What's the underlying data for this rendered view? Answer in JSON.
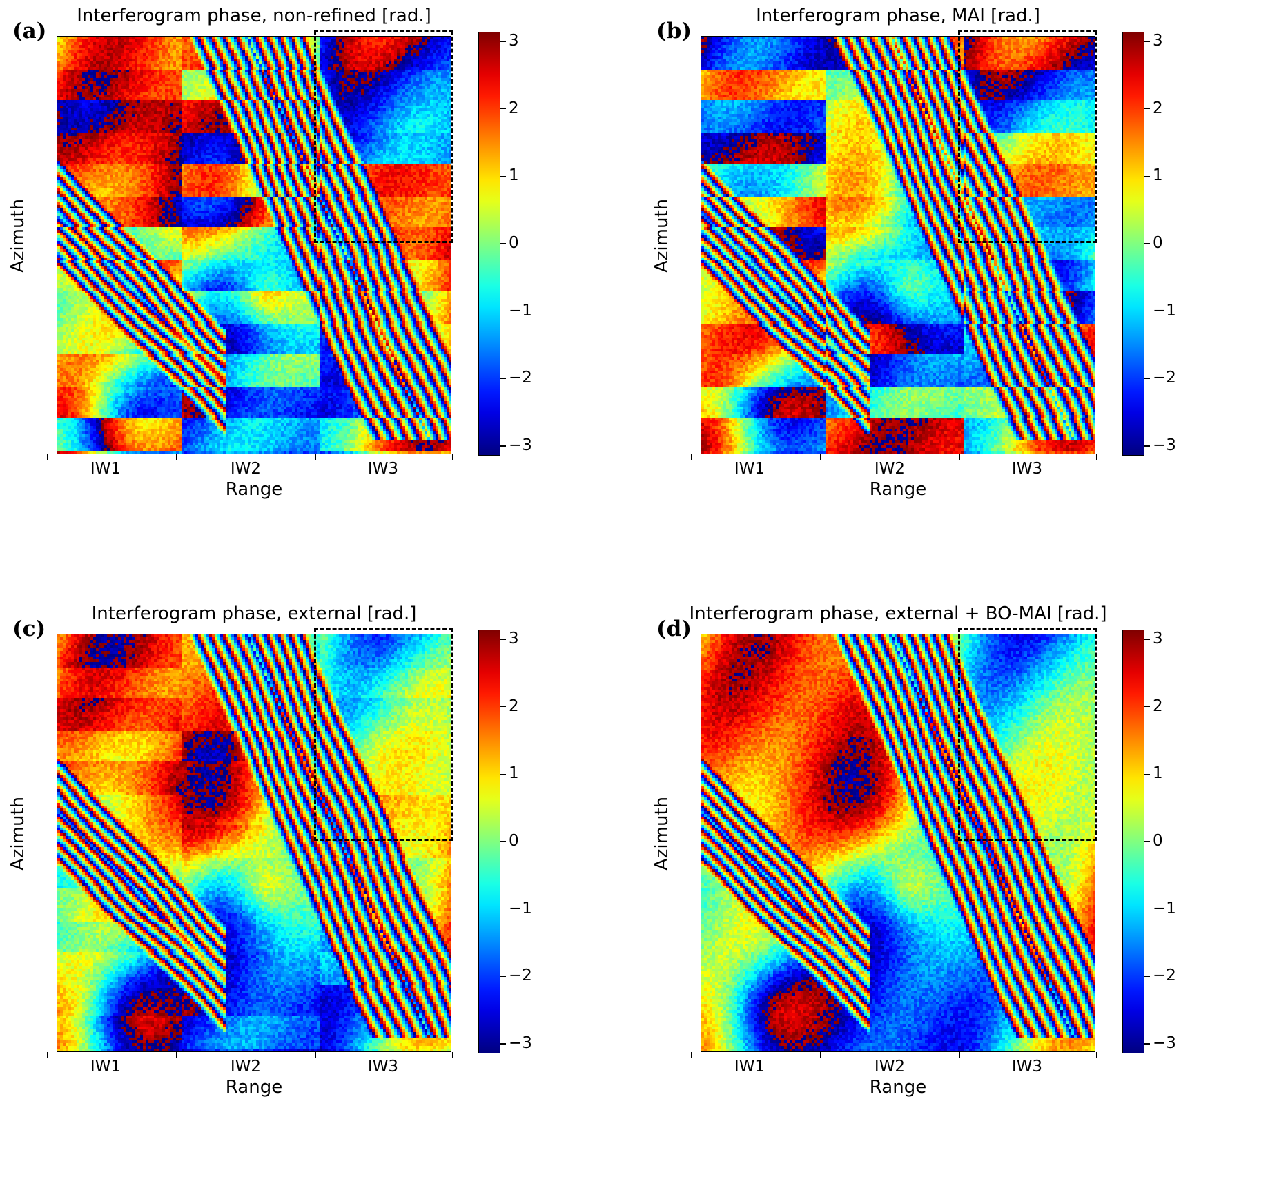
{
  "chart_data": [
    {
      "type": "heatmap",
      "panel_label": "(a)",
      "title": "Interferogram phase, non-refined [rad.]",
      "xlabel": "Range",
      "ylabel": "Azimuth",
      "x_categories": [
        "IW1",
        "IW2",
        "IW3"
      ],
      "colorbar": {
        "colormap": "jet",
        "range": [
          -3.14159,
          3.14159
        ],
        "ticks": [
          "3",
          "2",
          "1",
          "0",
          "−1",
          "−2",
          "−3"
        ]
      },
      "highlight_region": {
        "style": "dashed",
        "location": "top-right, IW3 sub-swath"
      },
      "burst_discontinuities": "strong"
    },
    {
      "type": "heatmap",
      "panel_label": "(b)",
      "title": "Interferogram phase, MAI [rad.]",
      "xlabel": "Range",
      "ylabel": "Azimuth",
      "x_categories": [
        "IW1",
        "IW2",
        "IW3"
      ],
      "colorbar": {
        "colormap": "jet",
        "range": [
          -3.14159,
          3.14159
        ],
        "ticks": [
          "3",
          "2",
          "1",
          "0",
          "−1",
          "−2",
          "−3"
        ]
      },
      "highlight_region": {
        "style": "dashed",
        "location": "top-right, IW3 sub-swath"
      },
      "burst_discontinuities": "very strong"
    },
    {
      "type": "heatmap",
      "panel_label": "(c)",
      "title": "Interferogram phase, external [rad.]",
      "xlabel": "Range",
      "ylabel": "Azimuth",
      "x_categories": [
        "IW1",
        "IW2",
        "IW3"
      ],
      "colorbar": {
        "colormap": "jet",
        "range": [
          -3.14159,
          3.14159
        ],
        "ticks": [
          "3",
          "2",
          "1",
          "0",
          "−1",
          "−2",
          "−3"
        ]
      },
      "highlight_region": {
        "style": "dashed",
        "location": "top-right, IW3 sub-swath"
      },
      "burst_discontinuities": "weak"
    },
    {
      "type": "heatmap",
      "panel_label": "(d)",
      "title": "Interferogram phase, external + BO-MAI [rad.]",
      "xlabel": "Range",
      "ylabel": "Azimuth",
      "x_categories": [
        "IW1",
        "IW2",
        "IW3"
      ],
      "colorbar": {
        "colormap": "jet",
        "range": [
          -3.14159,
          3.14159
        ],
        "ticks": [
          "3",
          "2",
          "1",
          "0",
          "−1",
          "−2",
          "−3"
        ]
      },
      "highlight_region": {
        "style": "dashed",
        "location": "top-right, IW3 sub-swath"
      },
      "burst_discontinuities": "none"
    }
  ]
}
